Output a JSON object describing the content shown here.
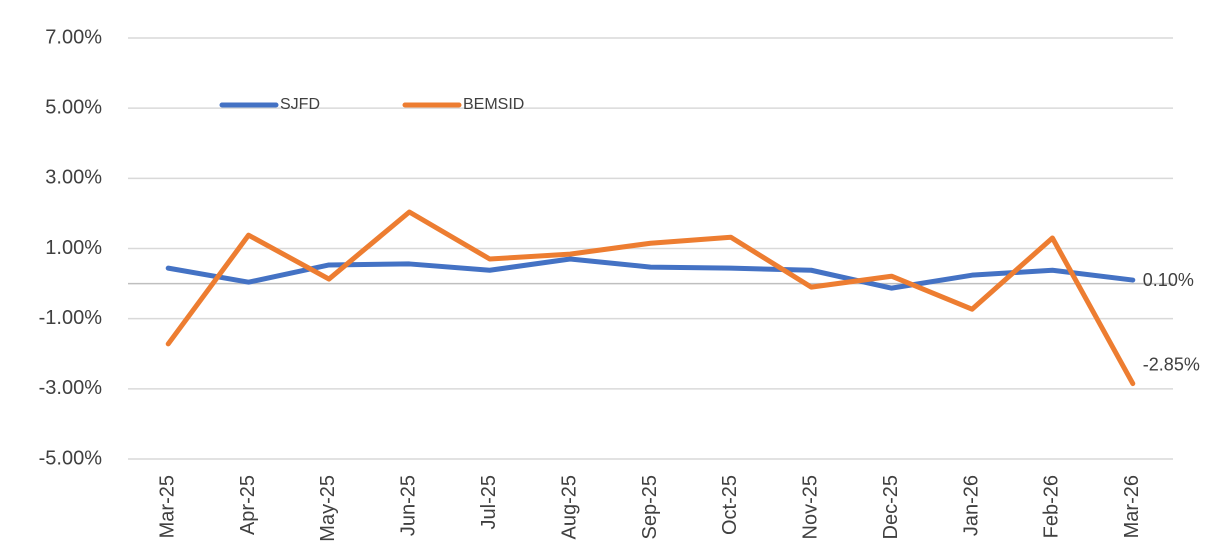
{
  "chart_data": {
    "type": "line",
    "categories": [
      "Mar-25",
      "Apr-25",
      "May-25",
      "Jun-25",
      "Jul-25",
      "Aug-25",
      "Sep-25",
      "Oct-25",
      "Nov-25",
      "Dec-25",
      "Jan-26",
      "Feb-26",
      "Mar-26"
    ],
    "series": [
      {
        "name": "SJFD",
        "color": "#4472c4",
        "values": [
          0.44,
          0.04,
          0.53,
          0.56,
          0.38,
          0.7,
          0.47,
          0.44,
          0.38,
          -0.13,
          0.24,
          0.38,
          0.1
        ],
        "value_labels": [
          null,
          null,
          null,
          null,
          null,
          null,
          null,
          null,
          null,
          null,
          null,
          null,
          "0.10%"
        ]
      },
      {
        "name": "BEMSID",
        "color": "#ed7d31",
        "values": [
          -1.72,
          1.38,
          0.13,
          2.04,
          0.7,
          0.84,
          1.15,
          1.32,
          -0.1,
          0.21,
          -0.73,
          1.3,
          -2.85
        ],
        "value_labels": [
          null,
          null,
          null,
          null,
          null,
          null,
          null,
          null,
          null,
          null,
          null,
          null,
          "-2.85%"
        ]
      }
    ],
    "ylim": [
      -5,
      7
    ],
    "yticks": [
      {
        "value": -5,
        "label": "-5.00%"
      },
      {
        "value": -3,
        "label": "-3.00%"
      },
      {
        "value": -1,
        "label": "-1.00%"
      },
      {
        "value": 1,
        "label": "1.00%"
      },
      {
        "value": 3,
        "label": "3.00%"
      },
      {
        "value": 5,
        "label": "5.00%"
      },
      {
        "value": 7,
        "label": "7.00%"
      }
    ],
    "grid": true,
    "legend": "top-left"
  }
}
